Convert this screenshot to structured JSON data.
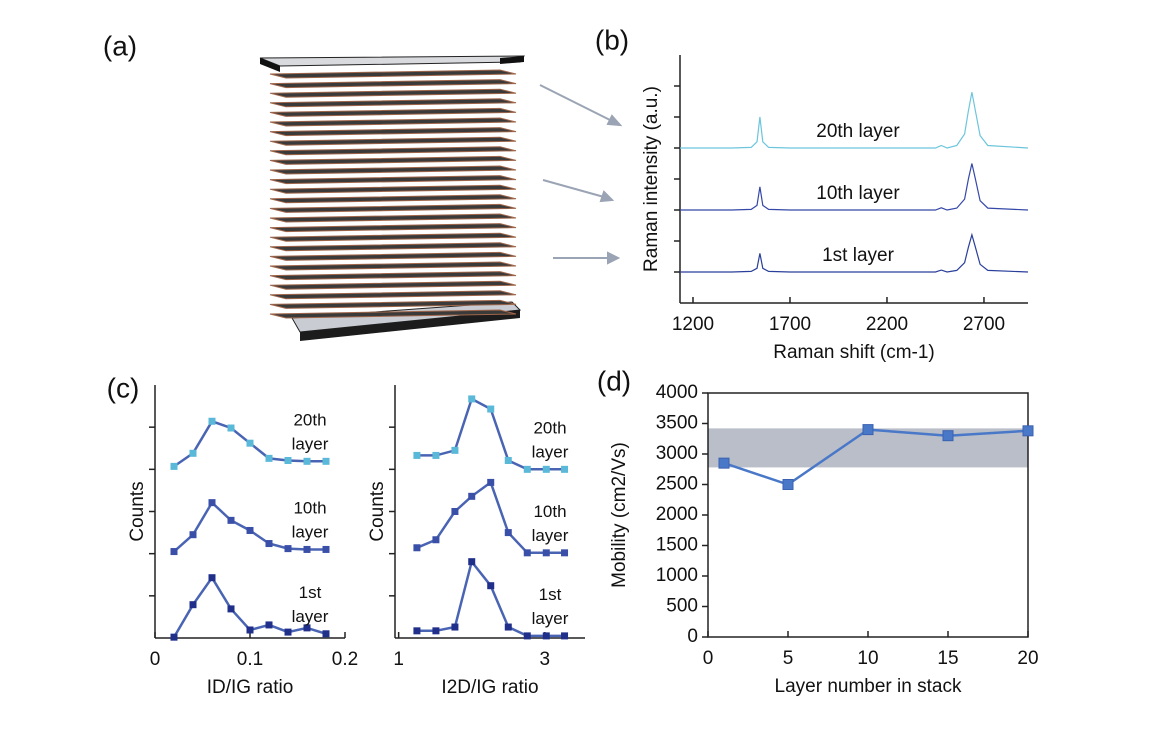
{
  "panel_labels": [
    "(a)",
    "(b)",
    "(c)",
    "(d)"
  ],
  "chart_data": [
    {
      "type": "line",
      "x_label": "Raman shift (cm-1)",
      "y_label": "Raman intensity (a.u.)",
      "xlim": [
        1133,
        2927
      ],
      "xticks": [
        1200,
        1700,
        2200,
        2700
      ],
      "ylim": [
        0,
        8
      ],
      "yticks": [
        1,
        2,
        3,
        4,
        5,
        6,
        7
      ],
      "ytick_labels": false,
      "frame": "axes",
      "markers": false,
      "x": [
        1133,
        1400,
        1500,
        1530,
        1545,
        1560,
        1590,
        1700,
        2000,
        2450,
        2480,
        2510,
        2560,
        2600,
        2620,
        2638,
        2656,
        2680,
        2720,
        2927
      ],
      "series": [
        {
          "name": "20th layer",
          "color": "#6cc5dd",
          "values": [
            5,
            5,
            5.02,
            5.2,
            6,
            5.2,
            5.02,
            5,
            5,
            5,
            5.08,
            5,
            5.08,
            5.45,
            6.2,
            6.8,
            6.2,
            5.4,
            5.08,
            5
          ]
        },
        {
          "name": "10th layer",
          "color": "#3548a8",
          "values": [
            3,
            3,
            3.02,
            3.15,
            3.75,
            3.15,
            3.02,
            3,
            3,
            3,
            3.07,
            3,
            3.06,
            3.35,
            4.0,
            4.5,
            4.0,
            3.3,
            3.06,
            3
          ]
        },
        {
          "name": "1st layer",
          "color": "#2a3f9a",
          "values": [
            1,
            1,
            1.02,
            1.12,
            1.6,
            1.12,
            1.02,
            1,
            1,
            1,
            1.06,
            1,
            1.05,
            1.3,
            1.8,
            2.2,
            1.8,
            1.25,
            1.05,
            1
          ]
        }
      ]
    },
    {
      "type": "line",
      "x_label": "ID/IG ratio",
      "y_label": "Counts",
      "xlim": [
        0,
        0.2
      ],
      "xticks": [
        0,
        0.1,
        0.2
      ],
      "ylim": [
        0,
        6
      ],
      "yticks": [
        1,
        2,
        3,
        4,
        5
      ],
      "ytick_labels": false,
      "frame": "axes",
      "markers": true,
      "line_color": "#4a64b4",
      "x": [
        0.02,
        0.04,
        0.06,
        0.08,
        0.1,
        0.12,
        0.14,
        0.16,
        0.18
      ],
      "series": [
        {
          "name": "20th layer",
          "color": "#5ab8d8",
          "values": [
            4.07,
            4.38,
            5.14,
            4.98,
            4.62,
            4.26,
            4.21,
            4.19,
            4.19
          ]
        },
        {
          "name": "10th layer",
          "color": "#3a4fa8",
          "values": [
            2.05,
            2.45,
            3.21,
            2.79,
            2.55,
            2.24,
            2.12,
            2.1,
            2.1
          ]
        },
        {
          "name": "1st layer",
          "color": "#1f2f8a",
          "values": [
            0.02,
            0.79,
            1.43,
            0.69,
            0.19,
            0.31,
            0.14,
            0.24,
            0.1
          ]
        }
      ]
    },
    {
      "type": "line",
      "x_label": "I2D/IG ratio",
      "y_label": "Counts",
      "xlim": [
        0.95,
        3.55
      ],
      "xticks": [
        1,
        3
      ],
      "ylim": [
        0,
        6
      ],
      "yticks": [
        1,
        2,
        3,
        4,
        5
      ],
      "ytick_labels": false,
      "frame": "axes",
      "markers": true,
      "line_color": "#4a64b4",
      "x": [
        1.25,
        1.51,
        1.77,
        2.0,
        2.26,
        2.5,
        2.76,
        3.02,
        3.27
      ],
      "series": [
        {
          "name": "20th layer",
          "color": "#5ab8d8",
          "values": [
            4.33,
            4.33,
            4.45,
            5.67,
            5.43,
            4.21,
            4.0,
            4.0,
            4.0
          ]
        },
        {
          "name": "10th layer",
          "color": "#3a4fa8",
          "values": [
            2.14,
            2.33,
            3.0,
            3.36,
            3.69,
            2.5,
            2.02,
            2.02,
            2.02
          ]
        },
        {
          "name": "1st layer",
          "color": "#1f2f8a",
          "values": [
            0.17,
            0.17,
            0.26,
            1.81,
            1.24,
            0.26,
            0.05,
            0.05,
            0.05
          ]
        }
      ]
    },
    {
      "type": "line",
      "x_label": "Layer number in stack",
      "y_label": "Mobility (cm2/Vs)",
      "xlim": [
        0,
        20
      ],
      "xticks": [
        0,
        5,
        10,
        15,
        20
      ],
      "ylim": [
        0,
        4000
      ],
      "yticks": [
        0,
        500,
        1000,
        1500,
        2000,
        2500,
        3000,
        3500,
        4000
      ],
      "ytick_labels": true,
      "frame": "box",
      "markers": true,
      "line_color": "#4a78c8",
      "band": [
        2780,
        3420
      ],
      "band_color": "#b9bec8",
      "x": [
        1,
        5,
        10,
        15,
        20
      ],
      "series": [
        {
          "color": "#4a78c8",
          "values": [
            2850,
            2500,
            3400,
            3300,
            3380
          ]
        }
      ]
    }
  ]
}
